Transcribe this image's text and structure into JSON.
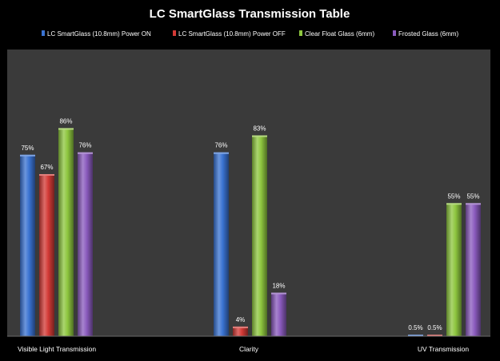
{
  "chart_data": {
    "type": "bar",
    "title": "LC SmartGlass Transmission Table",
    "categories": [
      "Visible Light Transmission",
      "Clarity",
      "UV Transmission"
    ],
    "series": [
      {
        "name": "LC SmartGlass (10.8mm) Power ON",
        "color": "#3a73d2",
        "values": [
          75,
          76,
          0.5
        ],
        "labels": [
          "75%",
          "76%",
          "0.5%"
        ]
      },
      {
        "name": "LC SmartGlass (10.8mm) Power OFF",
        "color": "#d33a36",
        "values": [
          67,
          4,
          0.5
        ],
        "labels": [
          "67%",
          "4%",
          "0.5%"
        ]
      },
      {
        "name": "Clear Float Glass (6mm)",
        "color": "#8ec63f",
        "values": [
          86,
          83,
          55
        ],
        "labels": [
          "86%",
          "83%",
          "55%"
        ]
      },
      {
        "name": "Frosted Glass (6mm)",
        "color": "#8a5bbd",
        "values": [
          76,
          18,
          55
        ],
        "labels": [
          "76%",
          "18%",
          "55%"
        ]
      }
    ],
    "ylim": [
      0,
      100
    ],
    "grid": false,
    "legend_position": "top",
    "plot_background": "#3a3a3a"
  }
}
